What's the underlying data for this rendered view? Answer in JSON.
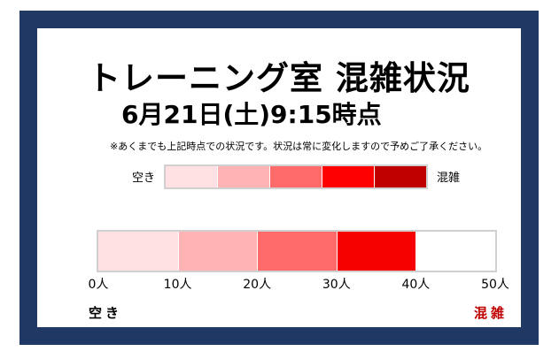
{
  "title": "トレーニング室 混雑状況",
  "datetime": "6月21日(土)9:15時点",
  "note": "※あくまでも上記時点での状況です。状況は常に変化しますので予めご了承ください。",
  "legend": {
    "low_label": "空き",
    "high_label": "混雑",
    "colors": [
      "#ffe1e4",
      "#ffb3b5",
      "#ff6b6b",
      "#ff0000",
      "#c00000"
    ]
  },
  "gauge": {
    "current_people": 40,
    "max_people": 50,
    "segment_colors": [
      "#ffe1e4",
      "#ffb3b5",
      "#ff6b6b",
      "#f60000"
    ],
    "ticks": [
      "0人",
      "10人",
      "20人",
      "30人",
      "40人",
      "50人"
    ],
    "low_label": "空き",
    "high_label": "混雑"
  }
}
